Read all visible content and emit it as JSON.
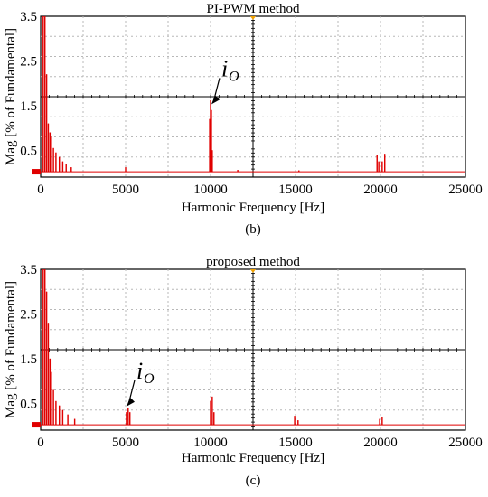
{
  "chart_data": [
    {
      "type": "line",
      "title": "PI-PWM method",
      "caption": "(b)",
      "xlabel": "Harmonic Frequency [Hz]",
      "ylabel": "Mag [% of Fundamental]",
      "xlim": [
        0,
        25000
      ],
      "ylim": [
        -0.1,
        3.5
      ],
      "xticks": [
        0,
        5000,
        10000,
        15000,
        20000,
        25000
      ],
      "yticks": [
        "3.5",
        "2.5",
        "1.5",
        "0.5"
      ],
      "ytick_values": [
        3.5,
        2.5,
        1.5,
        0.5
      ],
      "annotation": {
        "text": "i",
        "sub": "O",
        "x": 10000,
        "y": 1.55
      },
      "baseline": 0.02,
      "spikes": [
        [
          150,
          3.5
        ],
        [
          250,
          3.5
        ],
        [
          350,
          2.2
        ],
        [
          450,
          1.1
        ],
        [
          550,
          0.9
        ],
        [
          650,
          0.8
        ],
        [
          750,
          0.55
        ],
        [
          900,
          0.45
        ],
        [
          1100,
          0.35
        ],
        [
          1300,
          0.25
        ],
        [
          1500,
          0.2
        ],
        [
          1800,
          0.12
        ],
        [
          5000,
          0.12
        ],
        [
          9950,
          1.2
        ],
        [
          10000,
          1.62
        ],
        [
          10050,
          1.4
        ],
        [
          10100,
          0.5
        ],
        [
          11600,
          0.06
        ],
        [
          15200,
          0.05
        ],
        [
          19800,
          0.4
        ],
        [
          19900,
          0.25
        ],
        [
          20100,
          0.25
        ],
        [
          20250,
          0.42
        ]
      ]
    },
    {
      "type": "line",
      "title": "proposed method",
      "caption": "(c)",
      "xlabel": "Harmonic Frequency [Hz]",
      "ylabel": "Mag [% of Fundamental]",
      "xlim": [
        0,
        25000
      ],
      "ylim": [
        -0.1,
        3.5
      ],
      "xticks": [
        0,
        5000,
        10000,
        15000,
        20000,
        25000
      ],
      "yticks": [
        "3.5",
        "2.5",
        "1.5",
        "0.5"
      ],
      "ytick_values": [
        3.5,
        2.5,
        1.5,
        0.5
      ],
      "annotation": {
        "text": "i",
        "sub": "O",
        "x": 5000,
        "y": 0.45
      },
      "baseline": 0.02,
      "spikes": [
        [
          150,
          3.5
        ],
        [
          250,
          3.5
        ],
        [
          350,
          3.0
        ],
        [
          450,
          2.3
        ],
        [
          550,
          1.5
        ],
        [
          650,
          1.2
        ],
        [
          750,
          0.8
        ],
        [
          900,
          0.55
        ],
        [
          1100,
          0.45
        ],
        [
          1300,
          0.35
        ],
        [
          1600,
          0.25
        ],
        [
          2000,
          0.15
        ],
        [
          5050,
          0.3
        ],
        [
          5150,
          0.4
        ],
        [
          5250,
          0.3
        ],
        [
          10000,
          0.55
        ],
        [
          10100,
          0.65
        ],
        [
          10200,
          0.3
        ],
        [
          14950,
          0.22
        ],
        [
          15150,
          0.12
        ],
        [
          19950,
          0.15
        ],
        [
          20100,
          0.2
        ]
      ]
    }
  ]
}
